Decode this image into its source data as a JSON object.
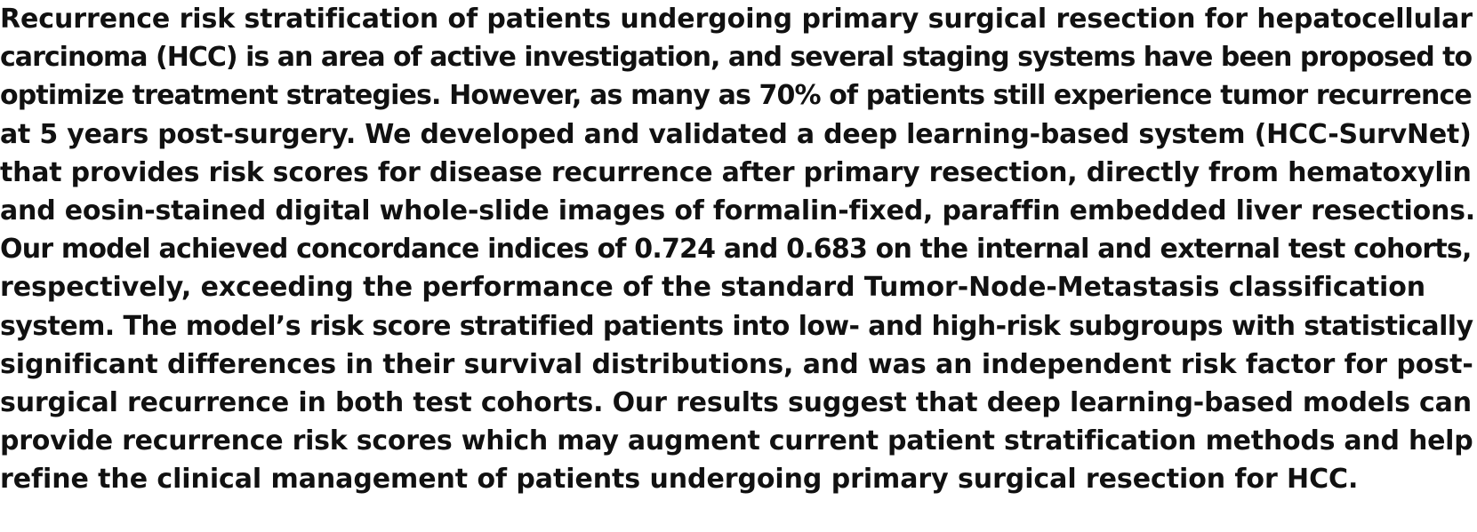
{
  "abstract": {
    "lines": [
      "Recurrence risk stratification of patients undergoing primary surgical resection for hepatocellular",
      "carcinoma (HCC) is an area of active investigation, and several staging systems have been proposed to",
      "optimize treatment strategies. However, as many as 70% of patients still experience tumor recurrence",
      "at 5 years post-surgery. We developed and validated a deep learning-based system (HCC-SurvNet)",
      "that provides risk scores for disease recurrence after primary resection, directly from hematoxylin",
      "and eosin-stained digital whole-slide images of formalin-fixed, paraffin embedded liver resections.",
      "Our model achieved concordance indices of 0.724 and 0.683 on the internal and external test cohorts,",
      "respectively, exceeding the performance of the standard Tumor-Node-Metastasis classification",
      "system. The model’s risk score stratified patients into low- and high-risk subgroups with statistically",
      "significant differences in their survival distributions, and was an independent risk factor for post-",
      "surgical recurrence in both test cohorts. Our results suggest that deep learning-based models can",
      "provide recurrence risk scores which may augment current patient stratification methods and help",
      "refine the clinical management of patients undergoing primary surgical resection for HCC."
    ]
  }
}
